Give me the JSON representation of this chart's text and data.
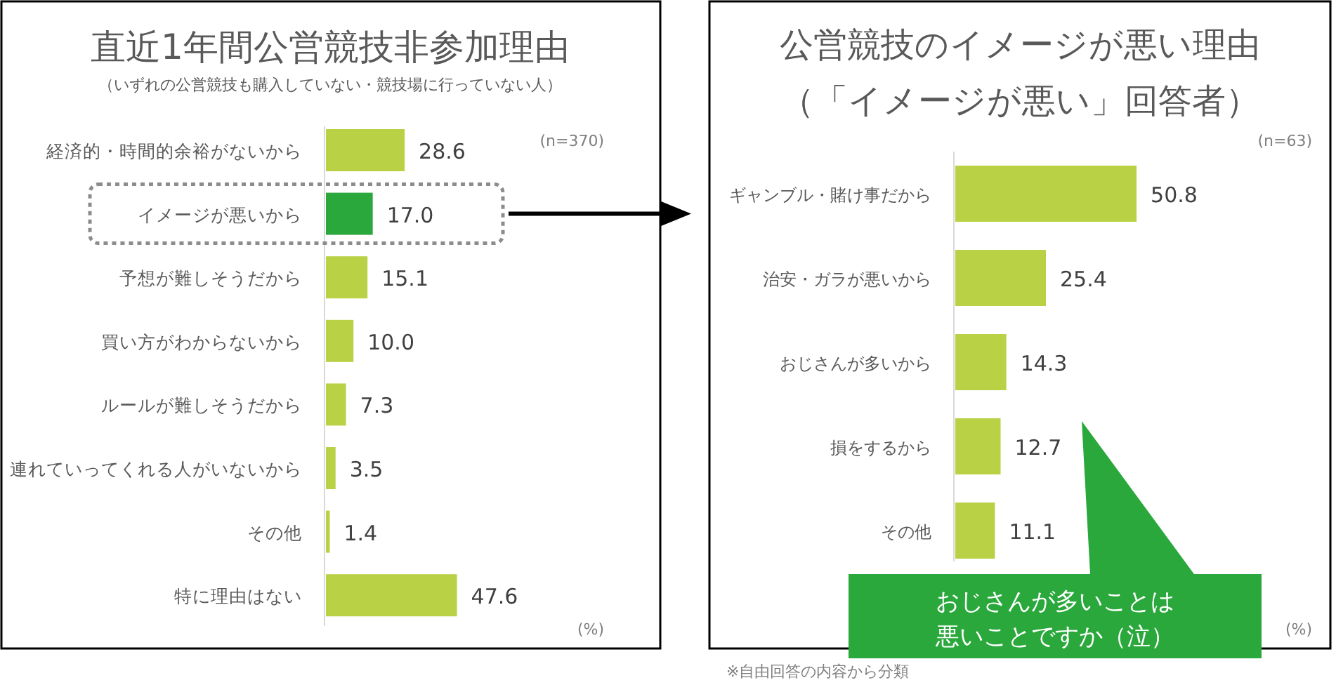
{
  "chart_data": [
    {
      "type": "bar",
      "orientation": "horizontal",
      "title": "直近1年間公営競技非参加理由",
      "subtitle": "（いずれの公営競技も購入していない・競技場に行っていない人）",
      "categories": [
        "経済的・時間的余裕がないから",
        "イメージが悪いから",
        "予想が難しそうだから",
        "買い方がわからないから",
        "ルールが難しそうだから",
        "連れていってくれる人がいないから",
        "その他",
        "特に理由はない"
      ],
      "values": [
        28.6,
        17.0,
        15.1,
        10.0,
        7.3,
        3.5,
        1.4,
        47.6
      ],
      "colors": [
        "#b9d245",
        "#2aa83c",
        "#b9d245",
        "#b9d245",
        "#b9d245",
        "#b9d245",
        "#b9d245",
        "#b9d245"
      ],
      "value_labels": [
        "28.6",
        "17.0",
        "15.1",
        "10.0",
        "7.3",
        "3.5",
        "1.4",
        "47.6"
      ],
      "annotations": [
        "(n=370)",
        "(%)"
      ]
    },
    {
      "type": "bar",
      "orientation": "horizontal",
      "title": "公営競技のイメージが悪い理由",
      "subtitle": "（「イメージが悪い」回答者）",
      "categories": [
        "ギャンブル・賭け事だから",
        "治安・ガラが悪いから",
        "おじさんが多いから",
        "損をするから",
        "その他"
      ],
      "values": [
        50.8,
        25.4,
        14.3,
        12.7,
        11.1
      ],
      "colors": [
        "#b9d245",
        "#b9d245",
        "#b9d245",
        "#b9d245",
        "#b9d245"
      ],
      "value_labels": [
        "50.8",
        "25.4",
        "14.3",
        "12.7",
        "11.1"
      ],
      "annotations": [
        "(n=63)",
        "(%)",
        "※自由回答の内容から分類",
        "おじさんが多いことは悪いことですか（泣）"
      ]
    }
  ]
}
